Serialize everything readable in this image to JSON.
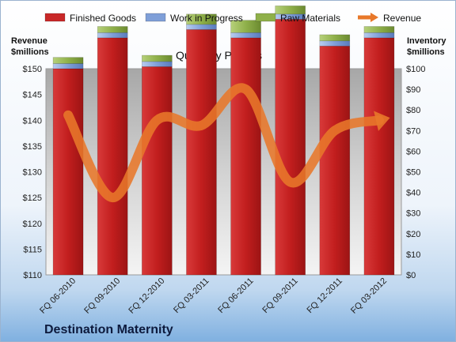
{
  "chart_data": {
    "type": "bar",
    "title": "Quarterly Periods",
    "company": "Destination Maternity",
    "categories": [
      "FQ 06-2010",
      "FQ 09-2010",
      "FQ 12-2010",
      "FQ 03-2011",
      "FQ 06-2011",
      "FQ 09-2011",
      "FQ 12-2011",
      "FQ 03-2012"
    ],
    "stack_series": [
      {
        "name": "Finished Goods",
        "values": [
          100,
          115,
          101,
          119,
          115,
          124,
          111,
          115
        ],
        "color": "#cc2222"
      },
      {
        "name": "Work in Progress",
        "values": [
          2.5,
          2.5,
          2.5,
          2.5,
          2.5,
          2.5,
          2.5,
          2.5
        ],
        "color": "#7f9fd8"
      },
      {
        "name": "Raw Materials",
        "values": [
          3,
          3,
          3,
          5,
          6,
          4,
          3,
          3
        ],
        "color": "#8fb04a"
      }
    ],
    "line_series": {
      "name": "Revenue",
      "values": [
        141,
        125,
        140,
        139,
        146,
        128,
        138,
        140
      ],
      "color": "#e8782a"
    },
    "left_axis": {
      "label_line1": "Revenue",
      "label_line2": "$millions",
      "ylim": [
        110,
        150
      ],
      "ticks": [
        "$110",
        "$115",
        "$120",
        "$125",
        "$130",
        "$135",
        "$140",
        "$145",
        "$150"
      ]
    },
    "right_axis": {
      "label_line1": "Inventory",
      "label_line2": "$millions",
      "ylim": [
        0,
        100
      ],
      "ticks": [
        "$0",
        "$10",
        "$20",
        "$30",
        "$40",
        "$50",
        "$60",
        "$70",
        "$80",
        "$90",
        "$100"
      ]
    },
    "legend_position": "top",
    "grid": false
  }
}
